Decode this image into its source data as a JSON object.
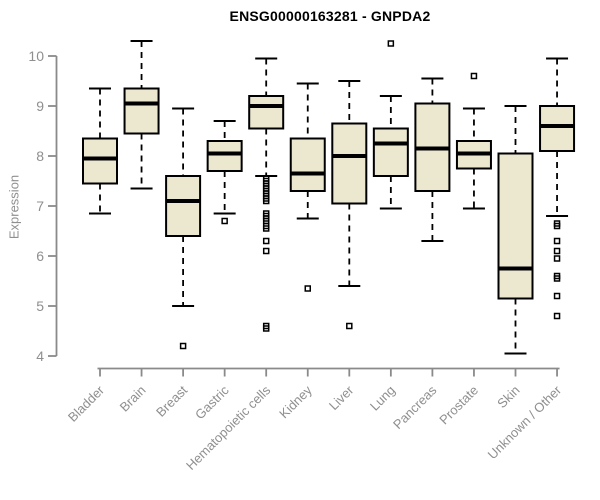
{
  "header": {
    "title": "ENSG00000163281 - GNPDA2"
  },
  "chart_data": {
    "type": "boxplot",
    "title": "ENSG00000163281 - GNPDA2",
    "xlabel": "",
    "ylabel": "Expression",
    "ylim": [
      4,
      10
    ],
    "yticks": [
      4,
      5,
      6,
      7,
      8,
      9,
      10
    ],
    "grid": false,
    "legend": "none",
    "categories": [
      "Bladder",
      "Brain",
      "Breast",
      "Gastric",
      "Hematopoietic cells",
      "Kidney",
      "Liver",
      "Lung",
      "Pancreas",
      "Prostate",
      "Skin",
      "Unknown / Other"
    ],
    "series": [
      {
        "label": "Bladder",
        "whisker_low": 6.85,
        "q1": 7.45,
        "median": 7.95,
        "q3": 8.35,
        "whisker_high": 9.35,
        "outliers": []
      },
      {
        "label": "Brain",
        "whisker_low": 7.35,
        "q1": 8.45,
        "median": 9.05,
        "q3": 9.35,
        "whisker_high": 10.3,
        "outliers": []
      },
      {
        "label": "Breast",
        "whisker_low": 5.0,
        "q1": 6.4,
        "median": 7.1,
        "q3": 7.6,
        "whisker_high": 8.95,
        "outliers": [
          4.2
        ]
      },
      {
        "label": "Gastric",
        "whisker_low": 6.85,
        "q1": 7.7,
        "median": 8.05,
        "q3": 8.3,
        "whisker_high": 8.7,
        "outliers": [
          6.7
        ]
      },
      {
        "label": "Hematopoietic cells",
        "whisker_low": 7.6,
        "q1": 8.55,
        "median": 9.0,
        "q3": 9.2,
        "whisker_high": 9.95,
        "outliers": [
          7.55,
          7.5,
          7.45,
          7.4,
          7.35,
          7.3,
          7.25,
          7.2,
          7.15,
          7.1,
          6.85,
          6.8,
          6.75,
          6.7,
          6.6,
          6.55,
          6.3,
          6.1,
          4.6,
          4.55
        ]
      },
      {
        "label": "Kidney",
        "whisker_low": 6.75,
        "q1": 7.3,
        "median": 7.65,
        "q3": 8.35,
        "whisker_high": 9.45,
        "outliers": [
          5.35
        ]
      },
      {
        "label": "Liver",
        "whisker_low": 5.4,
        "q1": 7.05,
        "median": 8.0,
        "q3": 8.65,
        "whisker_high": 9.5,
        "outliers": [
          4.6
        ]
      },
      {
        "label": "Lung",
        "whisker_low": 6.95,
        "q1": 7.6,
        "median": 8.25,
        "q3": 8.55,
        "whisker_high": 9.2,
        "outliers": [
          10.25
        ]
      },
      {
        "label": "Pancreas",
        "whisker_low": 6.3,
        "q1": 7.3,
        "median": 8.15,
        "q3": 9.05,
        "whisker_high": 9.55,
        "outliers": []
      },
      {
        "label": "Prostate",
        "whisker_low": 6.95,
        "q1": 7.75,
        "median": 8.05,
        "q3": 8.3,
        "whisker_high": 8.95,
        "outliers": [
          9.6
        ]
      },
      {
        "label": "Skin",
        "whisker_low": 4.05,
        "q1": 5.15,
        "median": 5.75,
        "q3": 8.05,
        "whisker_high": 9.0,
        "outliers": []
      },
      {
        "label": "Unknown / Other",
        "whisker_low": 6.8,
        "q1": 8.1,
        "median": 8.6,
        "q3": 9.0,
        "whisker_high": 9.95,
        "outliers": [
          6.65,
          6.6,
          6.3,
          6.1,
          5.95,
          5.6,
          5.55,
          5.2,
          4.8
        ]
      }
    ],
    "colors": {
      "box_fill": "#ece7cf",
      "box_border": "#000000",
      "median": "#000000",
      "whisker": "#000000",
      "outlier": "#000000",
      "axis": "#8a8a8a",
      "tick_label": "#8f8f8f",
      "title": "#000000"
    }
  }
}
